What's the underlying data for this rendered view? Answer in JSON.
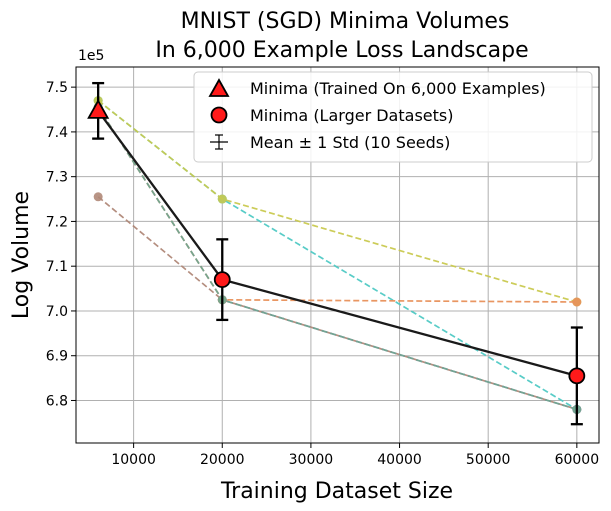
{
  "chart_data": {
    "type": "line",
    "title_line1": "MNIST (SGD) Minima Volumes",
    "title_line2": "In 6,000 Example Loss Landscape",
    "xlabel": "Training Dataset Size",
    "ylabel": "Log Volume",
    "y_offset_label": "1e5",
    "xlim": [
      3500,
      62500
    ],
    "ylim": [
      6.705,
      7.545
    ],
    "x_ticks": [
      10000,
      20000,
      30000,
      40000,
      50000,
      60000
    ],
    "x_tick_labels": [
      "10000",
      "20000",
      "30000",
      "40000",
      "50000",
      "60000"
    ],
    "y_ticks": [
      6.8,
      6.9,
      7.0,
      7.1,
      7.2,
      7.3,
      7.4,
      7.5
    ],
    "y_tick_labels": [
      "6.8",
      "6.9",
      "7.0",
      "7.1",
      "7.2",
      "7.3",
      "7.4",
      "7.5"
    ],
    "grid": true,
    "legend_position": "top-right",
    "legend": [
      {
        "label": "Minima (Trained On 6,000 Examples)",
        "marker": "triangle"
      },
      {
        "label": "Minima (Larger Datasets)",
        "marker": "circle"
      },
      {
        "label": "Mean ± 1 Std (10 Seeds)",
        "marker": "errorbar"
      }
    ],
    "seeds": [
      {
        "color": "#4fc9c4",
        "x": [
          6000,
          20000,
          60000
        ],
        "y": [
          7.47,
          7.25,
          6.78
        ]
      },
      {
        "color": "#c9c94f",
        "x": [
          6000,
          20000,
          60000
        ],
        "y": [
          7.47,
          7.25,
          7.02
        ]
      },
      {
        "color": "#b08878",
        "x": [
          6000,
          20000,
          60000
        ],
        "y": [
          7.255,
          7.025,
          6.78
        ]
      },
      {
        "color": "#9878a8",
        "x": [
          6000,
          20000,
          60000
        ],
        "y": [
          7.455,
          7.025,
          6.78
        ]
      },
      {
        "color": "#e8905a",
        "x": [
          6000,
          20000,
          60000
        ],
        "y": [
          7.455,
          7.025,
          7.02
        ]
      },
      {
        "color": "#6fa890",
        "x": [
          6000,
          20000,
          60000
        ],
        "y": [
          7.455,
          7.025,
          6.78
        ]
      }
    ],
    "mean": {
      "x": [
        6000,
        20000,
        60000
      ],
      "y": [
        7.447,
        7.07,
        6.855
      ],
      "std": [
        0.062,
        0.09,
        0.108
      ],
      "color": "#1a1a1a",
      "marker_fill": "#ff1a1a"
    }
  }
}
